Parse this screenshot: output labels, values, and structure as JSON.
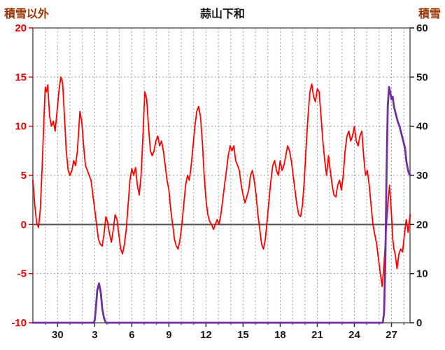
{
  "chart_data": {
    "type": "line",
    "title": "蒜山下和",
    "left_axis": {
      "label": "積雪以外",
      "min": -10,
      "max": 20,
      "ticks": [
        -10,
        -5,
        0,
        5,
        10,
        15,
        20
      ],
      "color": "#e60000"
    },
    "right_axis": {
      "label": "積雪",
      "min": 0,
      "max": 60,
      "ticks": [
        0,
        10,
        20,
        30,
        40,
        50,
        60
      ],
      "color": "#1a1a1a"
    },
    "x_axis": {
      "min": 0,
      "max": 30.5,
      "labels": [
        {
          "day": 2,
          "label": "30"
        },
        {
          "day": 5,
          "label": "3"
        },
        {
          "day": 8,
          "label": "6"
        },
        {
          "day": 11,
          "label": "9"
        },
        {
          "day": 14,
          "label": "12"
        },
        {
          "day": 17,
          "label": "15"
        },
        {
          "day": 20,
          "label": "18"
        },
        {
          "day": 23,
          "label": "21"
        },
        {
          "day": 26,
          "label": "24"
        },
        {
          "day": 29,
          "label": "27"
        }
      ],
      "label_color": "#1a1a1a"
    },
    "grid": {
      "v_step": 1,
      "h_step": 5,
      "color": "#9e9e9e",
      "zero_line_color": "#4d4d4d",
      "frame_color": "#808080"
    },
    "series": [
      {
        "name": "積雪以外",
        "axis": "left",
        "color": "#ff0000",
        "width": 1.8,
        "points": [
          [
            0.0,
            4.5
          ],
          [
            0.15,
            2
          ],
          [
            0.3,
            0.2
          ],
          [
            0.45,
            -0.3
          ],
          [
            0.6,
            1.5
          ],
          [
            0.75,
            6
          ],
          [
            0.9,
            11
          ],
          [
            1.0,
            14
          ],
          [
            1.1,
            13.5
          ],
          [
            1.2,
            14.2
          ],
          [
            1.35,
            11
          ],
          [
            1.5,
            10
          ],
          [
            1.65,
            10.5
          ],
          [
            1.8,
            9.5
          ],
          [
            1.95,
            11.5
          ],
          [
            2.1,
            13.5
          ],
          [
            2.25,
            15
          ],
          [
            2.4,
            14.5
          ],
          [
            2.55,
            11
          ],
          [
            2.7,
            7.5
          ],
          [
            2.85,
            5.5
          ],
          [
            3.0,
            5
          ],
          [
            3.15,
            5.5
          ],
          [
            3.3,
            6.5
          ],
          [
            3.45,
            6
          ],
          [
            3.6,
            7.5
          ],
          [
            3.8,
            11.5
          ],
          [
            3.95,
            10.5
          ],
          [
            4.1,
            8
          ],
          [
            4.25,
            6
          ],
          [
            4.4,
            5.5
          ],
          [
            4.55,
            5
          ],
          [
            4.7,
            4.5
          ],
          [
            4.85,
            3
          ],
          [
            5.0,
            1.5
          ],
          [
            5.15,
            0
          ],
          [
            5.3,
            -1.5
          ],
          [
            5.45,
            -2
          ],
          [
            5.6,
            -2.2
          ],
          [
            5.75,
            -1
          ],
          [
            5.9,
            0.8
          ],
          [
            6.05,
            0.2
          ],
          [
            6.2,
            -1
          ],
          [
            6.35,
            -1.8
          ],
          [
            6.5,
            -0.5
          ],
          [
            6.65,
            1
          ],
          [
            6.8,
            0.5
          ],
          [
            6.95,
            -1
          ],
          [
            7.1,
            -2.5
          ],
          [
            7.25,
            -3
          ],
          [
            7.4,
            -2
          ],
          [
            7.55,
            -0.5
          ],
          [
            7.7,
            2
          ],
          [
            7.85,
            4.5
          ],
          [
            8.0,
            5.7
          ],
          [
            8.15,
            5
          ],
          [
            8.3,
            5.8
          ],
          [
            8.45,
            4
          ],
          [
            8.6,
            3
          ],
          [
            8.75,
            5
          ],
          [
            8.9,
            9
          ],
          [
            9.05,
            13.5
          ],
          [
            9.2,
            12.8
          ],
          [
            9.35,
            10
          ],
          [
            9.5,
            7.5
          ],
          [
            9.65,
            7
          ],
          [
            9.8,
            7.5
          ],
          [
            9.95,
            8.5
          ],
          [
            10.1,
            9
          ],
          [
            10.25,
            8
          ],
          [
            10.4,
            8.5
          ],
          [
            10.55,
            7.5
          ],
          [
            10.7,
            6
          ],
          [
            10.85,
            4.5
          ],
          [
            11.0,
            3.5
          ],
          [
            11.15,
            1.5
          ],
          [
            11.3,
            0
          ],
          [
            11.45,
            -1.5
          ],
          [
            11.6,
            -2.2
          ],
          [
            11.75,
            -2.5
          ],
          [
            11.9,
            -1.5
          ],
          [
            12.05,
            0
          ],
          [
            12.2,
            2
          ],
          [
            12.35,
            4
          ],
          [
            12.5,
            5
          ],
          [
            12.65,
            4.5
          ],
          [
            12.8,
            6
          ],
          [
            12.95,
            8
          ],
          [
            13.1,
            10
          ],
          [
            13.25,
            11.5
          ],
          [
            13.4,
            12
          ],
          [
            13.55,
            11
          ],
          [
            13.7,
            8.5
          ],
          [
            13.85,
            5
          ],
          [
            14.0,
            2.5
          ],
          [
            14.15,
            1
          ],
          [
            14.3,
            0.3
          ],
          [
            14.45,
            0
          ],
          [
            14.6,
            -0.5
          ],
          [
            14.75,
            0
          ],
          [
            14.9,
            0.5
          ],
          [
            15.05,
            0
          ],
          [
            15.2,
            1
          ],
          [
            15.35,
            2.5
          ],
          [
            15.5,
            4
          ],
          [
            15.65,
            5.5
          ],
          [
            15.8,
            7
          ],
          [
            15.95,
            8
          ],
          [
            16.1,
            7.5
          ],
          [
            16.25,
            8
          ],
          [
            16.4,
            6.5
          ],
          [
            16.55,
            6
          ],
          [
            16.7,
            5.5
          ],
          [
            16.85,
            4
          ],
          [
            17.0,
            3
          ],
          [
            17.15,
            2.2
          ],
          [
            17.3,
            2.8
          ],
          [
            17.45,
            3.5
          ],
          [
            17.6,
            5
          ],
          [
            17.75,
            5.5
          ],
          [
            17.9,
            4.5
          ],
          [
            18.05,
            3
          ],
          [
            18.2,
            1
          ],
          [
            18.35,
            -0.5
          ],
          [
            18.5,
            -2
          ],
          [
            18.65,
            -2.5
          ],
          [
            18.8,
            -1.5
          ],
          [
            18.95,
            0.5
          ],
          [
            19.1,
            2.5
          ],
          [
            19.25,
            4.5
          ],
          [
            19.4,
            6
          ],
          [
            19.55,
            6.5
          ],
          [
            19.7,
            5.5
          ],
          [
            19.85,
            5
          ],
          [
            20.0,
            6.5
          ],
          [
            20.15,
            5.5
          ],
          [
            20.3,
            6
          ],
          [
            20.45,
            7
          ],
          [
            20.6,
            8
          ],
          [
            20.75,
            7.5
          ],
          [
            20.9,
            6.5
          ],
          [
            21.05,
            5
          ],
          [
            21.2,
            3.5
          ],
          [
            21.35,
            2
          ],
          [
            21.5,
            1
          ],
          [
            21.65,
            0.8
          ],
          [
            21.8,
            2
          ],
          [
            21.95,
            4.5
          ],
          [
            22.1,
            8
          ],
          [
            22.25,
            11
          ],
          [
            22.4,
            13.5
          ],
          [
            22.55,
            14.3
          ],
          [
            22.7,
            13
          ],
          [
            22.85,
            12.5
          ],
          [
            23.0,
            13.8
          ],
          [
            23.15,
            13.5
          ],
          [
            23.3,
            11
          ],
          [
            23.45,
            8.5
          ],
          [
            23.6,
            6.5
          ],
          [
            23.75,
            5
          ],
          [
            23.9,
            7
          ],
          [
            24.05,
            5.5
          ],
          [
            24.2,
            4
          ],
          [
            24.35,
            3
          ],
          [
            24.5,
            2.8
          ],
          [
            24.65,
            4
          ],
          [
            24.8,
            4.5
          ],
          [
            24.95,
            3.5
          ],
          [
            25.1,
            5
          ],
          [
            25.25,
            7.5
          ],
          [
            25.4,
            9
          ],
          [
            25.55,
            9.5
          ],
          [
            25.7,
            8.5
          ],
          [
            25.85,
            9
          ],
          [
            26.0,
            10
          ],
          [
            26.15,
            8.5
          ],
          [
            26.3,
            8
          ],
          [
            26.45,
            9
          ],
          [
            26.6,
            9.5
          ],
          [
            26.75,
            7
          ],
          [
            26.9,
            5
          ],
          [
            27.05,
            5.5
          ],
          [
            27.2,
            4
          ],
          [
            27.35,
            2
          ],
          [
            27.5,
            0
          ],
          [
            27.65,
            -1
          ],
          [
            27.8,
            -2
          ],
          [
            27.95,
            -3.5
          ],
          [
            28.1,
            -5
          ],
          [
            28.25,
            -6.3
          ],
          [
            28.4,
            -4
          ],
          [
            28.55,
            -1
          ],
          [
            28.7,
            2
          ],
          [
            28.85,
            4
          ],
          [
            29.0,
            1
          ],
          [
            29.1,
            -1.5
          ],
          [
            29.2,
            -2.5
          ],
          [
            29.3,
            -3
          ],
          [
            29.45,
            -4.5
          ],
          [
            29.6,
            -3
          ],
          [
            29.75,
            -2.5
          ],
          [
            29.9,
            -2.8
          ],
          [
            30.05,
            -1
          ],
          [
            30.2,
            0.5
          ],
          [
            30.35,
            -0.8
          ],
          [
            30.5,
            1
          ]
        ]
      },
      {
        "name": "積雪",
        "axis": "right",
        "color": "#7030a0",
        "width": 2.8,
        "points": [
          [
            0,
            0
          ],
          [
            4.9,
            0
          ],
          [
            5.0,
            0.5
          ],
          [
            5.1,
            3
          ],
          [
            5.2,
            6.5
          ],
          [
            5.35,
            8
          ],
          [
            5.5,
            6
          ],
          [
            5.6,
            3
          ],
          [
            5.75,
            1
          ],
          [
            5.9,
            0
          ],
          [
            28.3,
            0
          ],
          [
            28.4,
            2
          ],
          [
            28.5,
            12
          ],
          [
            28.6,
            30
          ],
          [
            28.7,
            44
          ],
          [
            28.8,
            48
          ],
          [
            28.9,
            47
          ],
          [
            29.0,
            45.5
          ],
          [
            29.1,
            46
          ],
          [
            29.2,
            44
          ],
          [
            29.35,
            42.5
          ],
          [
            29.5,
            41
          ],
          [
            29.65,
            40
          ],
          [
            29.8,
            38.5
          ],
          [
            29.95,
            37
          ],
          [
            30.1,
            35.5
          ],
          [
            30.2,
            33
          ],
          [
            30.3,
            31.5
          ],
          [
            30.4,
            30.5
          ],
          [
            30.5,
            30
          ]
        ]
      }
    ]
  }
}
